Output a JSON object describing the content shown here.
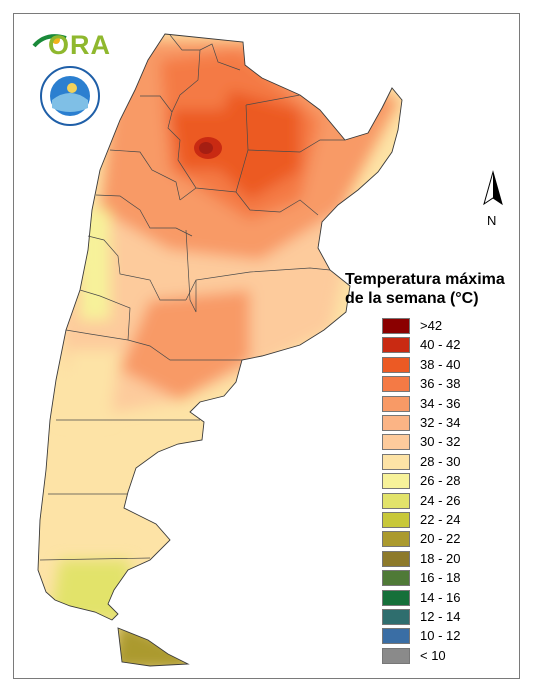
{
  "logo": {
    "ora_text": "ORA",
    "smn_seal_text": "SERVICIO METEOROLÓGICO NACIONAL",
    "smn_seal_bottom": "ARGENTINA"
  },
  "north_arrow": {
    "label": "N"
  },
  "legend": {
    "title_line1": "Temperatura máxima",
    "title_line2": "de la semana (°C)",
    "items": [
      {
        "label": ">42",
        "color": "#8b0000"
      },
      {
        "label": "40 - 42",
        "color": "#c92a12"
      },
      {
        "label": "38 - 40",
        "color": "#ec5a24"
      },
      {
        "label": "36 - 38",
        "color": "#f47a45"
      },
      {
        "label": "34 - 36",
        "color": "#f89a66"
      },
      {
        "label": "32 - 34",
        "color": "#fbb485"
      },
      {
        "label": "30 - 32",
        "color": "#fdcb9c"
      },
      {
        "label": "28 - 30",
        "color": "#fde3a6"
      },
      {
        "label": "26 - 28",
        "color": "#f7f29a"
      },
      {
        "label": "24 - 26",
        "color": "#e2e36b"
      },
      {
        "label": "22 - 24",
        "color": "#c8c83a"
      },
      {
        "label": "20 - 22",
        "color": "#ab9a2e"
      },
      {
        "label": "18 - 20",
        "color": "#8d7a2b"
      },
      {
        "label": "16 - 18",
        "color": "#4f7a37"
      },
      {
        "label": "14 - 16",
        "color": "#16703a"
      },
      {
        "label": "12 - 14",
        "color": "#2f6e6e"
      },
      {
        "label": "10 - 12",
        "color": "#3a6ea5"
      },
      {
        "label": "< 10",
        "color": "#8a8a8a"
      }
    ]
  }
}
